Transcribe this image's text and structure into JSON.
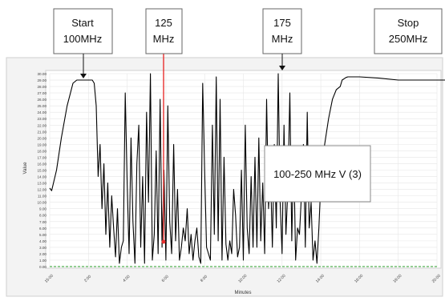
{
  "chart_data": {
    "type": "line",
    "title": "",
    "xlabel": "Minutes",
    "ylabel": "Value",
    "ylim": [
      0.0,
      3.0
    ],
    "yticks": [
      0.0,
      0.1,
      0.2,
      0.3,
      0.4,
      0.5,
      0.6,
      0.7,
      0.8,
      0.9,
      1.0,
      1.1,
      1.2,
      1.3,
      1.4,
      1.5,
      1.6,
      1.7,
      1.8,
      1.9,
      2.0,
      2.1,
      2.2,
      2.3,
      2.4,
      2.5,
      2.6,
      2.7,
      2.8,
      2.9,
      3.0
    ],
    "ytick_labels": [
      "0.00",
      "1.00",
      "2.00",
      "3.00",
      "4.00",
      "5.00",
      "6.00",
      "7.00",
      "8.00",
      "9.00",
      "10.00",
      "11.00",
      "12.00",
      "13.00",
      "14.00",
      "15.00",
      "16.00",
      "17.00",
      "18.00",
      "19.00",
      "20.00",
      "21.00",
      "22.00",
      "23.00",
      "24.00",
      "25.00",
      "26.00",
      "27.00",
      "28.00",
      "29.00",
      "30.00"
    ],
    "xticks": [
      0,
      2,
      4,
      6,
      8,
      10,
      12,
      14,
      16,
      18,
      20
    ],
    "xtick_labels": [
      "15:00",
      "2:00",
      "4:00",
      "6:00",
      "8:00",
      "10:00",
      "12:00",
      "14:00",
      "16:00",
      "18:00",
      "20:00"
    ],
    "grid": true,
    "threshold_line": {
      "value": 0.0,
      "color": "#2a9d2a"
    },
    "series": [
      {
        "color": "#000000",
        "x": [
          0.0,
          0.1,
          0.35,
          0.6,
          0.9,
          1.2,
          1.4,
          1.6,
          1.8,
          2.0,
          2.1,
          2.2,
          2.3,
          2.4,
          2.5,
          2.6,
          2.7,
          2.8,
          2.9,
          3.0,
          3.1,
          3.2,
          3.3,
          3.4,
          3.5,
          3.6,
          3.7,
          3.8,
          3.9,
          4.0,
          4.1,
          4.2,
          4.3,
          4.4,
          4.5,
          4.6,
          4.7,
          4.8,
          4.9,
          5.0,
          5.1,
          5.2,
          5.3,
          5.4,
          5.5,
          5.6,
          5.7,
          5.8,
          5.9,
          6.0,
          6.1,
          6.2,
          6.3,
          6.4,
          6.5,
          6.6,
          6.7,
          6.8,
          6.9,
          7.0,
          7.1,
          7.2,
          7.3,
          7.4,
          7.5,
          7.6,
          7.7,
          7.8,
          7.9,
          8.0,
          8.1,
          8.2,
          8.3,
          8.4,
          8.5,
          8.6,
          8.7,
          8.8,
          8.9,
          9.0,
          9.1,
          9.2,
          9.3,
          9.4,
          9.5,
          9.6,
          9.7,
          9.8,
          9.9,
          10.0,
          10.1,
          10.2,
          10.3,
          10.4,
          10.5,
          10.6,
          10.7,
          10.8,
          10.9,
          11.0,
          11.1,
          11.2,
          11.3,
          11.4,
          11.5,
          11.6,
          11.7,
          11.8,
          11.9,
          12.0,
          12.1,
          12.2,
          12.3,
          12.4,
          12.5,
          12.6,
          12.7,
          12.8,
          12.9,
          13.0,
          13.1,
          13.2,
          13.3,
          13.4,
          13.5,
          13.6,
          13.7,
          13.8,
          13.9,
          14.0,
          14.2,
          14.4,
          14.6,
          14.8,
          15.0,
          15.1,
          15.2,
          15.3,
          15.4,
          15.6,
          16.0,
          17.0,
          18.0,
          19.0,
          20.0,
          21.0,
          22.0,
          23.0,
          24.0,
          24.5
        ],
        "y": [
          1.22,
          1.18,
          1.5,
          2.0,
          2.5,
          2.85,
          2.9,
          2.9,
          2.9,
          2.9,
          2.9,
          2.9,
          2.85,
          2.5,
          1.4,
          1.9,
          0.9,
          1.6,
          0.5,
          1.3,
          0.3,
          1.1,
          0.6,
          0.15,
          0.9,
          0.05,
          0.3,
          0.4,
          2.7,
          1.3,
          0.2,
          2.0,
          0.7,
          0.05,
          1.6,
          2.2,
          0.3,
          1.4,
          0.05,
          2.4,
          1.0,
          3.0,
          0.1,
          0.5,
          1.8,
          0.2,
          2.6,
          0.3,
          1.5,
          0.1,
          2.5,
          0.7,
          0.2,
          1.9,
          0.4,
          1.2,
          0.1,
          0.3,
          0.6,
          0.4,
          0.9,
          0.2,
          0.5,
          0.1,
          0.4,
          0.6,
          0.15,
          0.05,
          2.85,
          1.5,
          0.3,
          0.2,
          0.1,
          2.2,
          0.5,
          2.95,
          0.4,
          2.6,
          0.1,
          1.7,
          0.35,
          0.1,
          0.4,
          0.2,
          1.2,
          0.8,
          0.15,
          0.3,
          1.5,
          0.1,
          2.2,
          0.6,
          0.2,
          1.4,
          0.3,
          1.7,
          0.3,
          2.0,
          0.4,
          1.3,
          0.2,
          2.6,
          0.9,
          1.5,
          0.3,
          1.9,
          0.6,
          3.0,
          1.0,
          0.2,
          2.2,
          0.5,
          1.2,
          2.7,
          0.4,
          1.8,
          0.1,
          0.6,
          0.5,
          1.1,
          1.9,
          0.3,
          2.4,
          0.6,
          1.0,
          0.1,
          0.4,
          0.05,
          0.6,
          1.3,
          1.9,
          2.3,
          2.6,
          2.75,
          2.8,
          2.9,
          2.92,
          2.94,
          2.95,
          2.95,
          2.95,
          2.93,
          2.9,
          2.9,
          2.9,
          2.9,
          2.9,
          2.9,
          2.9,
          2.9
        ]
      }
    ]
  },
  "annotations": [
    {
      "line1": "Start",
      "line2": "100MHz"
    },
    {
      "line1": "125",
      "line2": "MHz"
    },
    {
      "line1": "175",
      "line2": "MHz"
    },
    {
      "line1": "Stop",
      "line2": "250MHz"
    }
  ],
  "inset_label": "100-250 MHz V (3)",
  "marker_color": "#e8302f"
}
